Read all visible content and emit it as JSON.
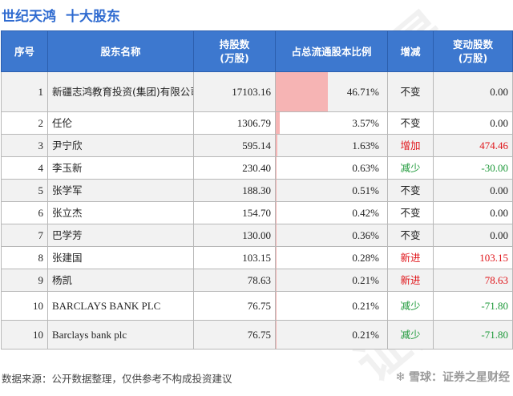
{
  "header": {
    "company": "世纪天鸿",
    "subtitle": "十大股东"
  },
  "table": {
    "columns": [
      "序号",
      "股东名称",
      "持股数\n(万股)",
      "占总流通股本比例",
      "增减",
      "变动股数\n(万股)"
    ],
    "rows": [
      {
        "rank": "1",
        "name": "新疆志鸿教育投资(集团)有限公司",
        "shares": "17103.16",
        "ratio": "46.71%",
        "ratio_value": 46.71,
        "change_type": "不变",
        "change_kind": "same",
        "change": "0.00"
      },
      {
        "rank": "2",
        "name": "任伦",
        "shares": "1306.79",
        "ratio": "3.57%",
        "ratio_value": 3.57,
        "change_type": "不变",
        "change_kind": "same",
        "change": "0.00"
      },
      {
        "rank": "3",
        "name": "尹宁欣",
        "shares": "595.14",
        "ratio": "1.63%",
        "ratio_value": 1.63,
        "change_type": "增加",
        "change_kind": "up",
        "change": "474.46"
      },
      {
        "rank": "4",
        "name": "李玉新",
        "shares": "230.40",
        "ratio": "0.63%",
        "ratio_value": 0.63,
        "change_type": "减少",
        "change_kind": "down",
        "change": "-30.00"
      },
      {
        "rank": "5",
        "name": "张学军",
        "shares": "188.30",
        "ratio": "0.51%",
        "ratio_value": 0.51,
        "change_type": "不变",
        "change_kind": "same",
        "change": "0.00"
      },
      {
        "rank": "6",
        "name": "张立杰",
        "shares": "154.70",
        "ratio": "0.42%",
        "ratio_value": 0.42,
        "change_type": "不变",
        "change_kind": "same",
        "change": "0.00"
      },
      {
        "rank": "7",
        "name": "巴学芳",
        "shares": "130.00",
        "ratio": "0.36%",
        "ratio_value": 0.36,
        "change_type": "不变",
        "change_kind": "same",
        "change": "0.00"
      },
      {
        "rank": "8",
        "name": "张建国",
        "shares": "103.15",
        "ratio": "0.28%",
        "ratio_value": 0.28,
        "change_type": "新进",
        "change_kind": "up",
        "change": "103.15"
      },
      {
        "rank": "9",
        "name": "杨凯",
        "shares": "78.63",
        "ratio": "0.21%",
        "ratio_value": 0.21,
        "change_type": "新进",
        "change_kind": "up",
        "change": "78.63"
      },
      {
        "rank": "10",
        "name": "BARCLAYS BANK PLC",
        "shares": "76.75",
        "ratio": "0.21%",
        "ratio_value": 0.21,
        "change_type": "减少",
        "change_kind": "down",
        "change": "-71.80"
      },
      {
        "rank": "10",
        "name": "Barclays bank plc",
        "shares": "76.75",
        "ratio": "0.21%",
        "ratio_value": 0.21,
        "change_type": "减少",
        "change_kind": "down",
        "change": "-71.80"
      }
    ]
  },
  "footer": {
    "note": "数据来源：公开数据整理，仅供参考不构成投资建议",
    "brand": "雪球：证券之星财经"
  },
  "watermark": "证券之星",
  "colors": {
    "header_bg": "#3d78cf",
    "title": "#2f6bd0",
    "ratio_bar": "#f6b4b4",
    "up": "#e0161b",
    "down": "#1f9a3b"
  }
}
